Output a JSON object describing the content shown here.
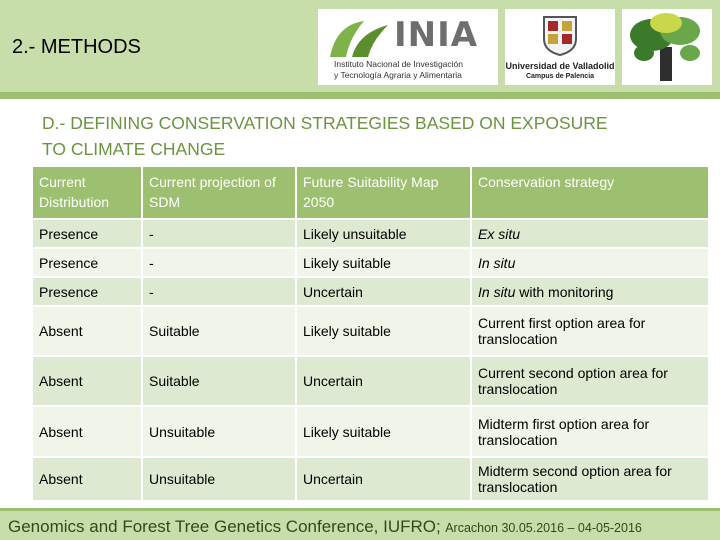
{
  "header": {
    "section_title": "2.- METHODS",
    "logos": {
      "inia_name": "INIA",
      "inia_line1": "Instituto Nacional de Investigación",
      "inia_line2": "y Tecnología Agraria y Alimentaria",
      "uva_name": "Universidad de Valladolid",
      "uva_campus": "Campus de Palencia"
    }
  },
  "subtitle_line1": "D.- DEFINING CONSERVATION STRATEGIES BASED ON EXPOSURE",
  "subtitle_line2": "TO CLIMATE CHANGE",
  "table": {
    "headers": [
      "Current Distribution",
      "Current projection of SDM",
      "Future Suitability Map 2050",
      "Conservation strategy"
    ],
    "rows": [
      {
        "distribution": "Presence",
        "projection": " -",
        "future": "Likely unsuitable",
        "strategy": "Ex situ",
        "strategy_rest": ""
      },
      {
        "distribution": "Presence",
        "projection": "-",
        "future": "Likely suitable",
        "strategy": "In situ",
        "strategy_rest": ""
      },
      {
        "distribution": "Presence",
        "projection": "-",
        "future": "Uncertain",
        "strategy": "In situ",
        "strategy_rest": " with monitoring"
      },
      {
        "distribution": "Absent",
        "projection": "Suitable",
        "future": "Likely suitable",
        "strategy": "",
        "strategy_rest": "Current first option area for translocation"
      },
      {
        "distribution": "Absent",
        "projection": "Suitable",
        "future": "Uncertain",
        "strategy": "",
        "strategy_rest": "Current second option area for translocation"
      },
      {
        "distribution": "Absent",
        "projection": "Unsuitable",
        "future": "Likely suitable",
        "strategy": "",
        "strategy_rest": "Midterm first option area for translocation"
      },
      {
        "distribution": "Absent",
        "projection": "Unsuitable",
        "future": "Uncertain",
        "strategy": "",
        "strategy_rest": "Midterm second option area for translocation"
      }
    ]
  },
  "footer": {
    "conference": "Genomics and Forest Tree Genetics Conference, IUFRO;",
    "location_dates": "Arcachon 30.05.2016 – 04-05-2016"
  },
  "colors": {
    "header_band": "#c7deab",
    "accent_green": "#9cc06f",
    "subtitle_green": "#6b9441",
    "row_dark": "#dde9d0",
    "row_light": "#eff5e8"
  }
}
